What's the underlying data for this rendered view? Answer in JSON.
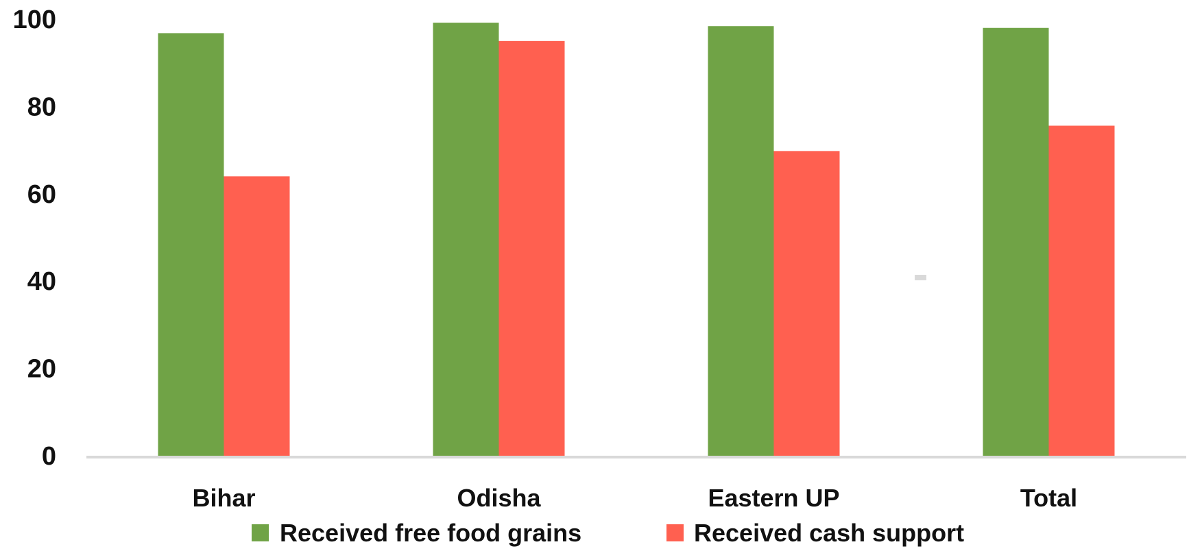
{
  "chart_data": {
    "type": "bar",
    "categories": [
      "Bihar",
      "Odisha",
      "Eastern UP",
      "Total"
    ],
    "series": [
      {
        "name": "Received free food grains",
        "color": "#70A346",
        "values": [
          96.8,
          99.2,
          98.4,
          98.0
        ]
      },
      {
        "name": "Received cash support",
        "color": "#FF6050",
        "values": [
          64.0,
          95.0,
          69.8,
          75.6
        ]
      }
    ],
    "title": "",
    "xlabel": "",
    "ylabel": "",
    "ylim": [
      0,
      100
    ],
    "yticks": [
      "0",
      "20",
      "40",
      "60",
      "80",
      "100"
    ],
    "grid": false,
    "legend": "bottom",
    "axis_color": "#D9D9D9",
    "stray_mark_color": "#D9D9D9"
  }
}
